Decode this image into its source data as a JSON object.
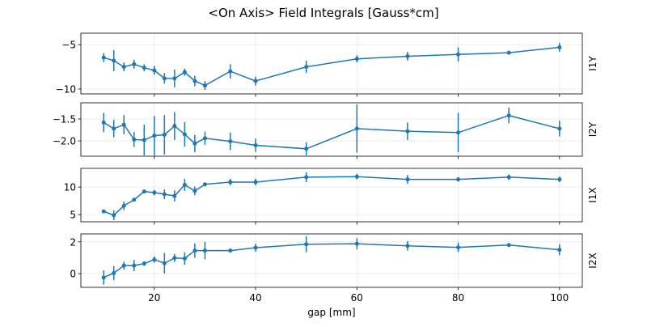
{
  "chart_data": {
    "type": "line",
    "title": "<On Axis> Field Integrals [Gauss*cm]",
    "xlabel": "gap [mm]",
    "xlim": [
      5.5,
      104.5
    ],
    "xticks": [
      20,
      40,
      60,
      80,
      100
    ],
    "grid": true,
    "color": "#1f77b4",
    "x": [
      10,
      12,
      14,
      16,
      18,
      20,
      22,
      24,
      26,
      28,
      30,
      35,
      40,
      50,
      60,
      70,
      80,
      90,
      100
    ],
    "panels": [
      {
        "ylabel": "I1Y",
        "ylim": [
          -10.55,
          -3.7
        ],
        "yticks": [
          -10,
          -5
        ],
        "ytick_labels": [
          "−10",
          "−5"
        ],
        "values": [
          -6.45,
          -6.8,
          -7.5,
          -7.2,
          -7.6,
          -7.9,
          -8.8,
          -8.8,
          -8.1,
          -9.1,
          -9.6,
          -8.0,
          -9.1,
          -7.5,
          -6.6,
          -6.3,
          -6.1,
          -5.9,
          -5.3
        ],
        "errors": [
          0.5,
          1.2,
          0.5,
          0.5,
          0.4,
          0.5,
          0.6,
          1.0,
          0.4,
          0.6,
          0.5,
          0.8,
          0.5,
          0.7,
          0.4,
          0.5,
          0.8,
          0.2,
          0.5
        ]
      },
      {
        "ylabel": "I2Y",
        "ylim": [
          -2.35,
          -1.13
        ],
        "yticks": [
          -2.0,
          -1.5
        ],
        "ytick_labels": [
          "−2.0",
          "−1.5"
        ],
        "values": [
          -1.58,
          -1.72,
          -1.63,
          -1.97,
          -1.98,
          -1.88,
          -1.86,
          -1.66,
          -1.85,
          -2.06,
          -1.94,
          -2.01,
          -2.1,
          -2.18,
          -1.72,
          -1.78,
          -1.81,
          -1.42,
          -1.72
        ],
        "errors": [
          0.22,
          0.2,
          0.22,
          0.17,
          0.35,
          0.45,
          0.45,
          0.32,
          0.28,
          0.2,
          0.15,
          0.2,
          0.15,
          0.15,
          0.55,
          0.2,
          0.45,
          0.18,
          0.18
        ]
      },
      {
        "ylabel": "I1X",
        "ylim": [
          3.7,
          13.4
        ],
        "yticks": [
          5,
          10
        ],
        "ytick_labels": [
          "5",
          "10"
        ],
        "values": [
          5.6,
          4.9,
          6.6,
          7.7,
          9.2,
          9.0,
          8.7,
          8.4,
          10.4,
          9.3,
          10.5,
          10.9,
          10.9,
          11.8,
          11.9,
          11.4,
          11.4,
          11.8,
          11.4
        ],
        "errors": [
          0.3,
          0.9,
          0.8,
          0.3,
          0.3,
          0.5,
          0.9,
          1.0,
          1.1,
          0.8,
          0.3,
          0.6,
          0.6,
          0.9,
          0.5,
          0.8,
          0.4,
          0.5,
          0.5
        ]
      },
      {
        "ylabel": "I2X",
        "ylim": [
          -0.87,
          2.5
        ],
        "yticks": [
          0,
          2
        ],
        "ytick_labels": [
          "0",
          "2"
        ],
        "values": [
          -0.25,
          0.03,
          0.5,
          0.5,
          0.63,
          0.88,
          0.65,
          0.98,
          0.95,
          1.45,
          1.45,
          1.45,
          1.63,
          1.85,
          1.88,
          1.75,
          1.65,
          1.8,
          1.5
        ],
        "errors": [
          0.45,
          0.45,
          0.25,
          0.35,
          0.15,
          0.2,
          0.65,
          0.25,
          0.4,
          0.45,
          0.55,
          0.05,
          0.25,
          0.5,
          0.35,
          0.3,
          0.3,
          0.1,
          0.35
        ]
      }
    ]
  }
}
